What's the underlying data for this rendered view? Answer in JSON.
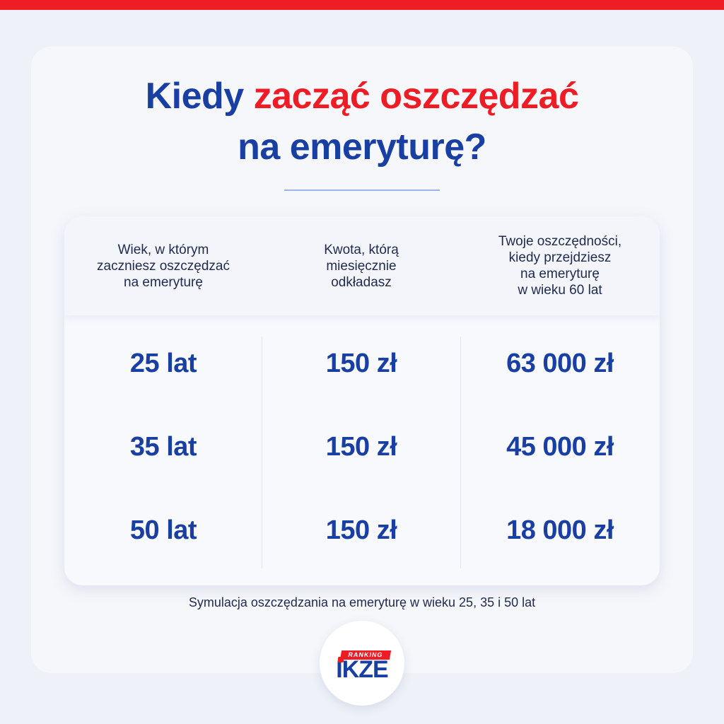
{
  "title": {
    "part1": "Kiedy ",
    "accent": "zacząć oszczędzać",
    "part2": "na emeryturę?"
  },
  "table": {
    "headers": [
      "Wiek, w którym\nzaczniesz oszczędzać\nna emeryturę",
      "Kwota, którą\nmiesięcznie\nodkładasz",
      "Twoje oszczędności,\nkiedy przejdziesz\nna emeryturę\nw wieku 60 lat"
    ],
    "rows": [
      [
        "25 lat",
        "150 zł",
        "63 000 zł"
      ],
      [
        "35 lat",
        "150 zł",
        "45 000 zł"
      ],
      [
        "50 lat",
        "150 zł",
        "18 000 zł"
      ]
    ]
  },
  "caption": "Symulacja oszczędzania na emeryturę w wieku 25, 35 i 50 lat",
  "logo": {
    "ranking": "RANKING",
    "name": "IKZE"
  },
  "colors": {
    "brand_blue": "#1a3fa3",
    "brand_red": "#ee1c25"
  }
}
